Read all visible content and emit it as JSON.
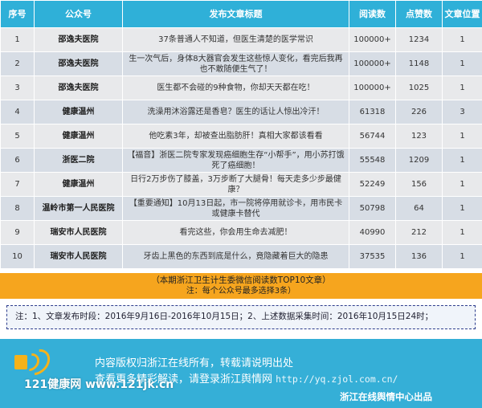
{
  "table": {
    "headers": {
      "no": "序号",
      "account": "公众号",
      "title": "发布文章标题",
      "reads": "阅读数",
      "likes": "点赞数",
      "position": "文章位置"
    },
    "rows": [
      {
        "no": "1",
        "account": "邵逸夫医院",
        "title": "37条普通人不知道，但医生清楚的医学常识",
        "reads": "100000+",
        "likes": "1234",
        "position": "1"
      },
      {
        "no": "2",
        "account": "邵逸夫医院",
        "title": "生一次气后，身体8大器官会发生这些惊人变化，看完后我再也不敢随便生气了！",
        "reads": "100000+",
        "likes": "1148",
        "position": "1"
      },
      {
        "no": "3",
        "account": "邵逸夫医院",
        "title": "医生都不会碰的9种食物，你却天天都在吃！",
        "reads": "100000+",
        "likes": "1025",
        "position": "1"
      },
      {
        "no": "4",
        "account": "健康温州",
        "title": "洗澡用沐浴露还是香皂？医生的话让人惊出冷汗！",
        "reads": "61318",
        "likes": "226",
        "position": "3"
      },
      {
        "no": "5",
        "account": "健康温州",
        "title": "他吃素3年，却被查出脂肪肝！真相大家都该看看",
        "reads": "56744",
        "likes": "123",
        "position": "1"
      },
      {
        "no": "6",
        "account": "浙医二院",
        "title": "【福音】浙医二院专家发现癌细胞生存“小帮手”，用小苏打饿死了癌细胞！",
        "reads": "55548",
        "likes": "1209",
        "position": "1"
      },
      {
        "no": "7",
        "account": "健康温州",
        "title": "日行2万步伤了膝盖，3万步断了大腿骨！每天走多少步最健康？",
        "reads": "52249",
        "likes": "156",
        "position": "1"
      },
      {
        "no": "8",
        "account": "温岭市第一人民医院",
        "title": "【重要通知】10月13日起，市一院将停用就诊卡，用市民卡或健康卡替代",
        "reads": "50798",
        "likes": "64",
        "position": "1"
      },
      {
        "no": "9",
        "account": "瑞安市人民医院",
        "title": "看完这些，你会用生命去减肥！",
        "reads": "40990",
        "likes": "212",
        "position": "1"
      },
      {
        "no": "10",
        "account": "瑞安市人民医院",
        "title": "牙齿上黑色的东西到底是什么，竟隐藏着巨大的隐患",
        "reads": "37535",
        "likes": "136",
        "position": "1"
      }
    ]
  },
  "caption": {
    "line1": "（本期浙江卫生计生委微信阅读数TOP10文章）",
    "line2": "注：每个公众号最多选择3条）"
  },
  "note": "注：1、文章发布时段：2016年9月16日-2016年10月15日；2、上述数据采集时间：2016年10月15日24时；",
  "footer": {
    "line1": "内容版权归浙江在线所有，转载请说明出处",
    "line2": "查看更多精彩解读，请登录浙江舆情网",
    "url": "http://yq.zjol.com.cn/",
    "watermark": "121健康网 www.121jk.cn",
    "publisher": "浙江在线舆情中心出品",
    "accent": "#f6b21a",
    "logo_icon": "speaker-icon"
  },
  "colors": {
    "header_bg": "#2fb0d8",
    "row_odd": "#e8e9eb",
    "row_even": "#d7dde5",
    "caption_bg": "#f6a51e",
    "footer_bg": "#35afd7"
  }
}
